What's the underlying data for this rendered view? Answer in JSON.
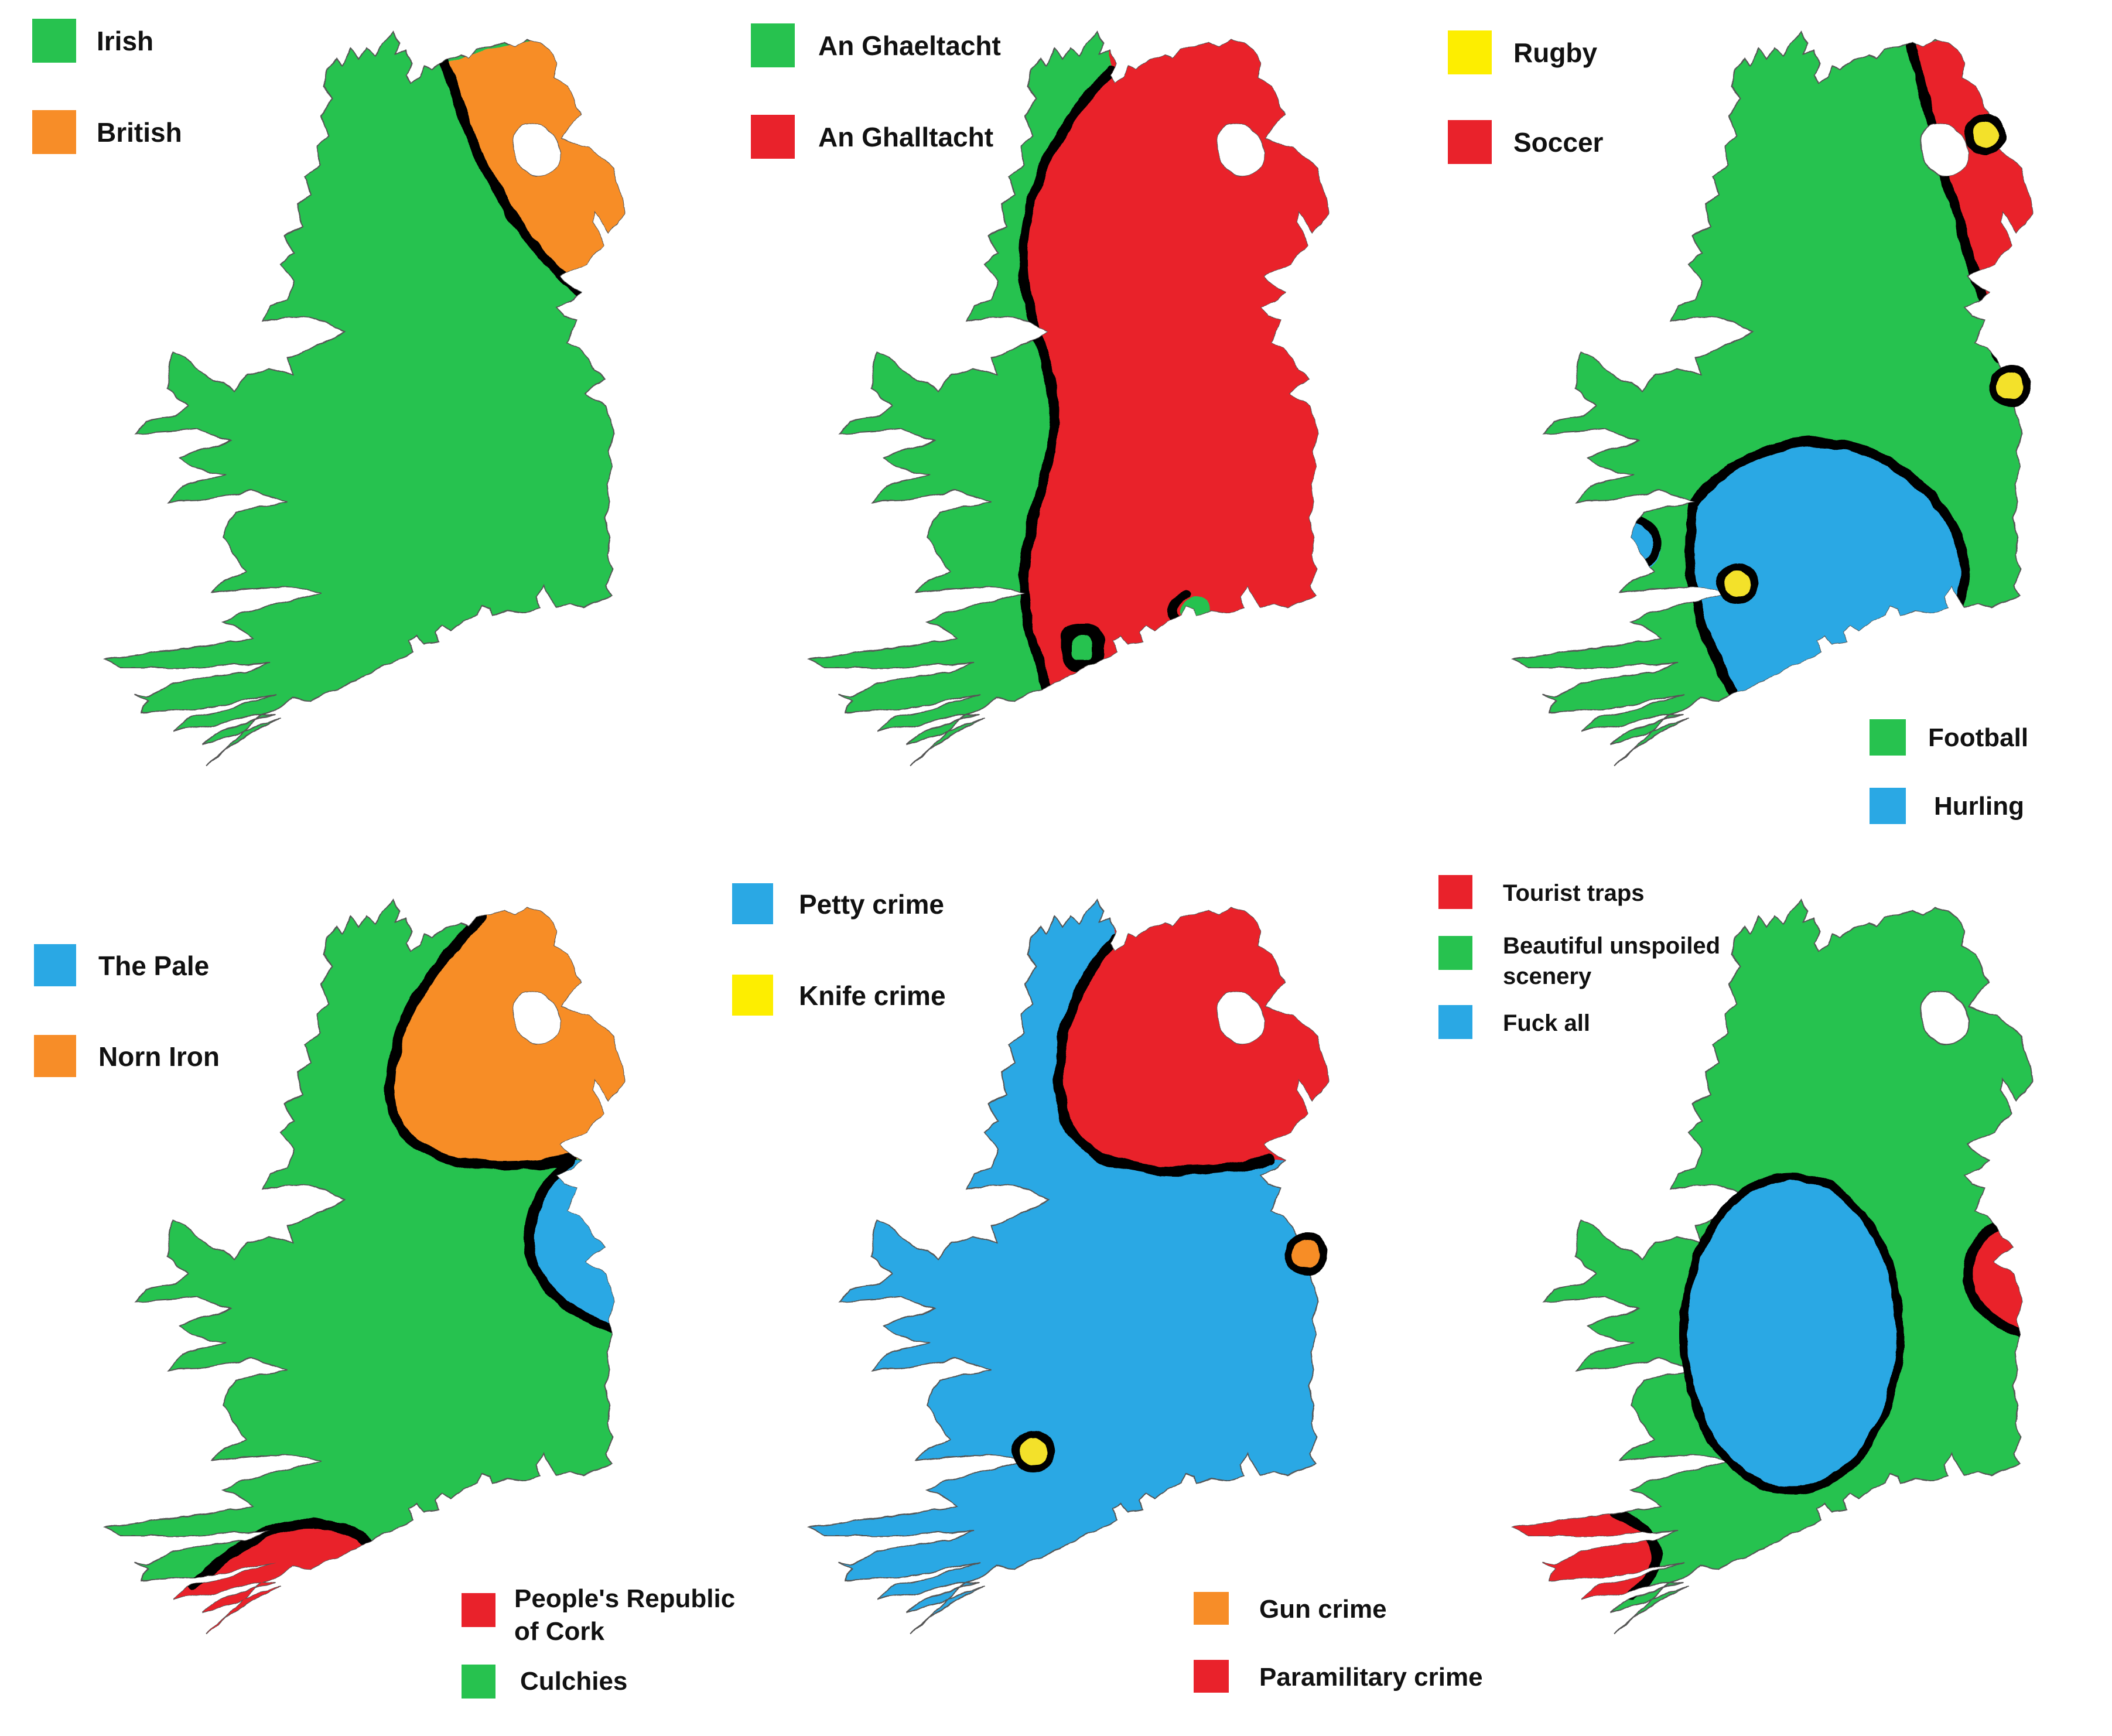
{
  "page": {
    "background": "#ffffff"
  },
  "palette": {
    "green": "#27C24F",
    "red": "#E9222B",
    "orange": "#F78D28",
    "blue": "#2AA8E4",
    "yellow": "#FDEE00",
    "dot_yellow": "#F3E12C",
    "line": "#000000",
    "coast": "#555555",
    "text": "#111111"
  },
  "maps": [
    {
      "id": "identity",
      "legend": [
        {
          "label": "Irish",
          "color": "#27C24F"
        },
        {
          "label": "British",
          "color": "#F78D28"
        }
      ]
    },
    {
      "id": "language",
      "legend": [
        {
          "label": "An Ghaeltacht",
          "color": "#27C24F"
        },
        {
          "label": "An Ghalltacht",
          "color": "#E9222B"
        }
      ]
    },
    {
      "id": "sports",
      "legend": [
        {
          "label": "Rugby",
          "color": "#FDEE00"
        },
        {
          "label": "Soccer",
          "color": "#E9222B"
        }
      ],
      "legend2": [
        {
          "label": "Football",
          "color": "#27C24F"
        },
        {
          "label": "Hurling",
          "color": "#2AA8E4"
        }
      ]
    },
    {
      "id": "regions",
      "legend": [
        {
          "label": "The Pale",
          "color": "#2AA8E4"
        },
        {
          "label": "Norn Iron",
          "color": "#F78D28"
        }
      ],
      "legend2": [
        {
          "label": "People's Republic",
          "label2": "of Cork",
          "color": "#E9222B"
        },
        {
          "label": "Culchies",
          "color": "#27C24F"
        }
      ]
    },
    {
      "id": "crime",
      "legend": [
        {
          "label": "Petty crime",
          "color": "#2AA8E4"
        },
        {
          "label": "Knife crime",
          "color": "#FDEE00"
        }
      ],
      "legend2": [
        {
          "label": "Gun crime",
          "color": "#F78D28"
        },
        {
          "label": "Paramilitary crime",
          "color": "#E9222B"
        }
      ]
    },
    {
      "id": "tourism",
      "legend": [
        {
          "label": "Tourist traps",
          "color": "#E9222B"
        },
        {
          "label": "Beautiful unspoiled",
          "label2": "scenery",
          "color": "#27C24F"
        },
        {
          "label": "Fuck all",
          "color": "#2AA8E4"
        }
      ]
    }
  ]
}
